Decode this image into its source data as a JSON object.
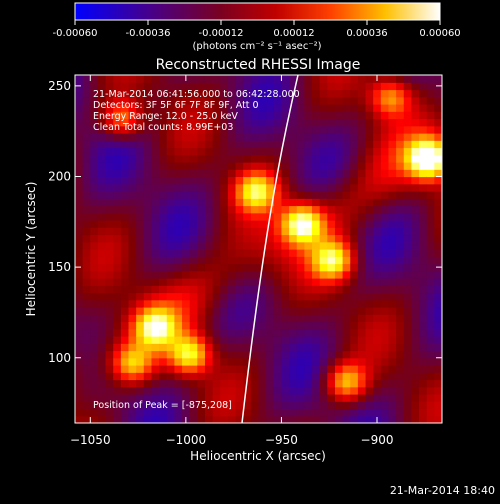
{
  "colorbar": {
    "ticks": [
      "-0.00060",
      "-0.00036",
      "-0.00012",
      "0.00012",
      "0.00036",
      "0.00060"
    ],
    "tick_values": [
      -0.0006,
      -0.00036,
      -0.00012,
      0.00012,
      0.00036,
      0.0006
    ],
    "range": [
      -0.0006,
      0.0006
    ],
    "unit_label": "(photons cm⁻² s⁻¹ asec⁻²)"
  },
  "plot": {
    "title": "Reconstructed RHESSI Image",
    "xlabel": "Heliocentric X (arcsec)",
    "ylabel": "Heliocentric Y (arcsec)",
    "annotations": [
      "21-Mar-2014 06:41:56.000 to 06:42:28.000",
      "Detectors: 3F 5F 6F 7F 8F 9F, Att 0",
      "Energy Range: 12.0 - 25.0 keV",
      "Clean     Total counts: 8.99E+03"
    ],
    "peak_label": "Position of Peak = [-875,208]"
  },
  "footer": {
    "timestamp": "21-Mar-2014 18:40"
  },
  "colors": {
    "background": "#000000",
    "colormap": [
      "#0000ff",
      "#4b0082",
      "#800000",
      "#ff0000",
      "#ff8c00",
      "#ffff00",
      "#ffffff"
    ]
  },
  "chart_data": {
    "type": "heatmap",
    "title": "Reconstructed RHESSI Image",
    "xlabel": "Heliocentric X (arcsec)",
    "ylabel": "Heliocentric Y (arcsec)",
    "xlim": [
      -1058,
      -866
    ],
    "ylim": [
      64,
      256
    ],
    "xticks": [
      -1050,
      -1000,
      -950,
      -900
    ],
    "yticks": [
      100,
      150,
      200,
      250
    ],
    "zlim": [
      -0.0006,
      0.0006
    ],
    "colorbar_ticks": [
      -0.0006,
      -0.00036,
      -0.00012,
      0.00012,
      0.00036,
      0.0006
    ],
    "peak": [
      -875,
      208
    ],
    "sources": [
      {
        "x": -875,
        "y": 208,
        "value": 0.0006
      },
      {
        "x": -941,
        "y": 172,
        "value": 0.00045
      },
      {
        "x": -965,
        "y": 190,
        "value": 0.0003
      },
      {
        "x": -925,
        "y": 152,
        "value": 0.00035
      },
      {
        "x": -1018,
        "y": 115,
        "value": 0.0003
      },
      {
        "x": -1000,
        "y": 100,
        "value": 0.00035
      },
      {
        "x": -1030,
        "y": 95,
        "value": 0.0002
      },
      {
        "x": -918,
        "y": 85,
        "value": 0.00025
      },
      {
        "x": -1035,
        "y": 230,
        "value": 0.00018
      },
      {
        "x": -895,
        "y": 242,
        "value": 0.00016
      }
    ]
  }
}
